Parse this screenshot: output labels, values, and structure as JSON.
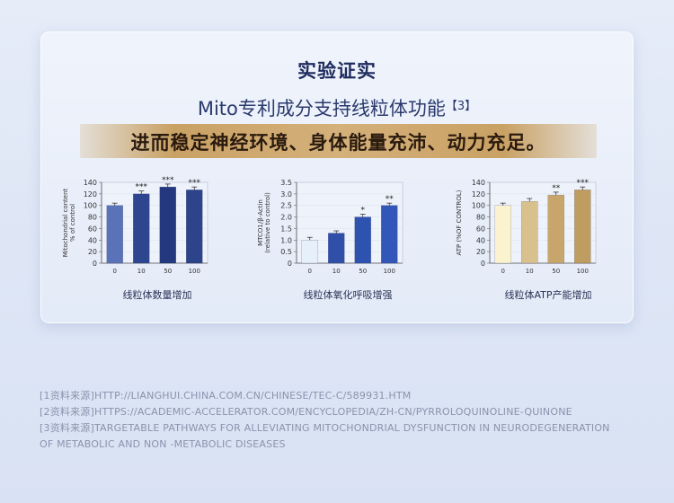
{
  "header": {
    "title": "实验证实",
    "subtitle": "Mito专利成分支持线粒体功能",
    "subtitle_ref": "【3】",
    "banner": "进而稳定神经环境、身体能量充沛、动力充足。"
  },
  "chart_data": [
    {
      "type": "bar",
      "categories": [
        "0",
        "10",
        "50",
        "100"
      ],
      "values": [
        100,
        120,
        132,
        127
      ],
      "errors": [
        4,
        5,
        5,
        5
      ],
      "annotations": [
        "",
        "***",
        "***",
        "***"
      ],
      "ylabel": "Mitochondrial content\n% of control",
      "ylim": [
        0,
        140
      ],
      "yticks": [
        0,
        20,
        40,
        60,
        80,
        100,
        120,
        140
      ],
      "title": "线粒体数量增加",
      "colors": [
        "#5a72b8",
        "#2e4590",
        "#23387e",
        "#2d438a"
      ]
    },
    {
      "type": "bar",
      "categories": [
        "0",
        "10",
        "50",
        "100"
      ],
      "values": [
        1.0,
        1.3,
        2.0,
        2.5
      ],
      "errors": [
        0.12,
        0.1,
        0.12,
        0.1
      ],
      "annotations": [
        "",
        "",
        "*",
        "**"
      ],
      "ylabel": "MTCO1/β-Actin\n(relative to control)",
      "ylim": [
        0,
        3.5
      ],
      "yticks": [
        0,
        0.5,
        1.0,
        1.5,
        2.0,
        2.5,
        3.0,
        3.5
      ],
      "title": "线粒体氧化呼吸增强",
      "colors": [
        "#e6f0fb",
        "#2f4fa8",
        "#2d52b0",
        "#3257b8"
      ]
    },
    {
      "type": "bar",
      "categories": [
        "0",
        "10",
        "50",
        "100"
      ],
      "values": [
        100,
        107,
        118,
        127
      ],
      "errors": [
        4,
        5,
        5,
        5
      ],
      "annotations": [
        "",
        "",
        "**",
        "***"
      ],
      "ylabel": "ATP (%OF CONTROL)",
      "ylim": [
        0,
        140
      ],
      "yticks": [
        0,
        20,
        40,
        60,
        80,
        100,
        120,
        140
      ],
      "title": "线粒体ATP产能增加",
      "colors": [
        "#fbf3cf",
        "#d9c18e",
        "#c8a66b",
        "#bf9c60"
      ]
    }
  ],
  "references": [
    "[1资料来源]HTTP://LIANGHUI.CHINA.COM.CN/CHINESE/TEC-C/589931.HTM",
    "[2资料来源]HTTPS://ACADEMIC-ACCELERATOR.COM/ENCYCLOPEDIA/ZH-CN/PYRROLOQUINOLINE-QUINONE",
    "[3资料来源]TARGETABLE PATHWAYS FOR ALLEVIATING MITOCHONDRIAL DYSFUNCTION IN NEURODEGENERATION OF METABOLIC AND NON -METABOLIC DISEASES"
  ]
}
